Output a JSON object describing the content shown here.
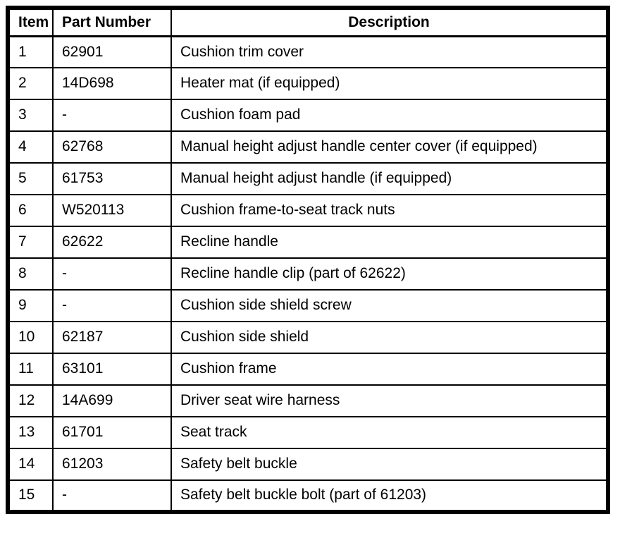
{
  "document": {
    "type": "parts-list-table",
    "colors": {
      "border": "#000000",
      "text": "#000000",
      "background": "#ffffff"
    }
  },
  "table": {
    "columns": [
      {
        "label": "Item"
      },
      {
        "label": "Part Number"
      },
      {
        "label": "Description"
      }
    ],
    "rows": [
      {
        "item": "1",
        "part_number": "62901",
        "description": "Cushion trim cover"
      },
      {
        "item": "2",
        "part_number": "14D698",
        "description": "Heater mat (if equipped)"
      },
      {
        "item": "3",
        "part_number": "-",
        "description": "Cushion foam pad"
      },
      {
        "item": "4",
        "part_number": "62768",
        "description": "Manual height adjust handle center cover (if equipped)"
      },
      {
        "item": "5",
        "part_number": "61753",
        "description": "Manual height adjust handle (if equipped)"
      },
      {
        "item": "6",
        "part_number": "W520113",
        "description": "Cushion frame-to-seat track nuts"
      },
      {
        "item": "7",
        "part_number": "62622",
        "description": "Recline handle"
      },
      {
        "item": "8",
        "part_number": "-",
        "description": "Recline handle clip (part of 62622)"
      },
      {
        "item": "9",
        "part_number": "-",
        "description": "Cushion side shield screw"
      },
      {
        "item": "10",
        "part_number": "62187",
        "description": "Cushion side shield"
      },
      {
        "item": "11",
        "part_number": "63101",
        "description": "Cushion frame"
      },
      {
        "item": "12",
        "part_number": "14A699",
        "description": "Driver seat wire harness"
      },
      {
        "item": "13",
        "part_number": "61701",
        "description": "Seat track"
      },
      {
        "item": "14",
        "part_number": "61203",
        "description": "Safety belt buckle"
      },
      {
        "item": "15",
        "part_number": "-",
        "description": "Safety belt buckle bolt (part of 61203)"
      }
    ]
  }
}
